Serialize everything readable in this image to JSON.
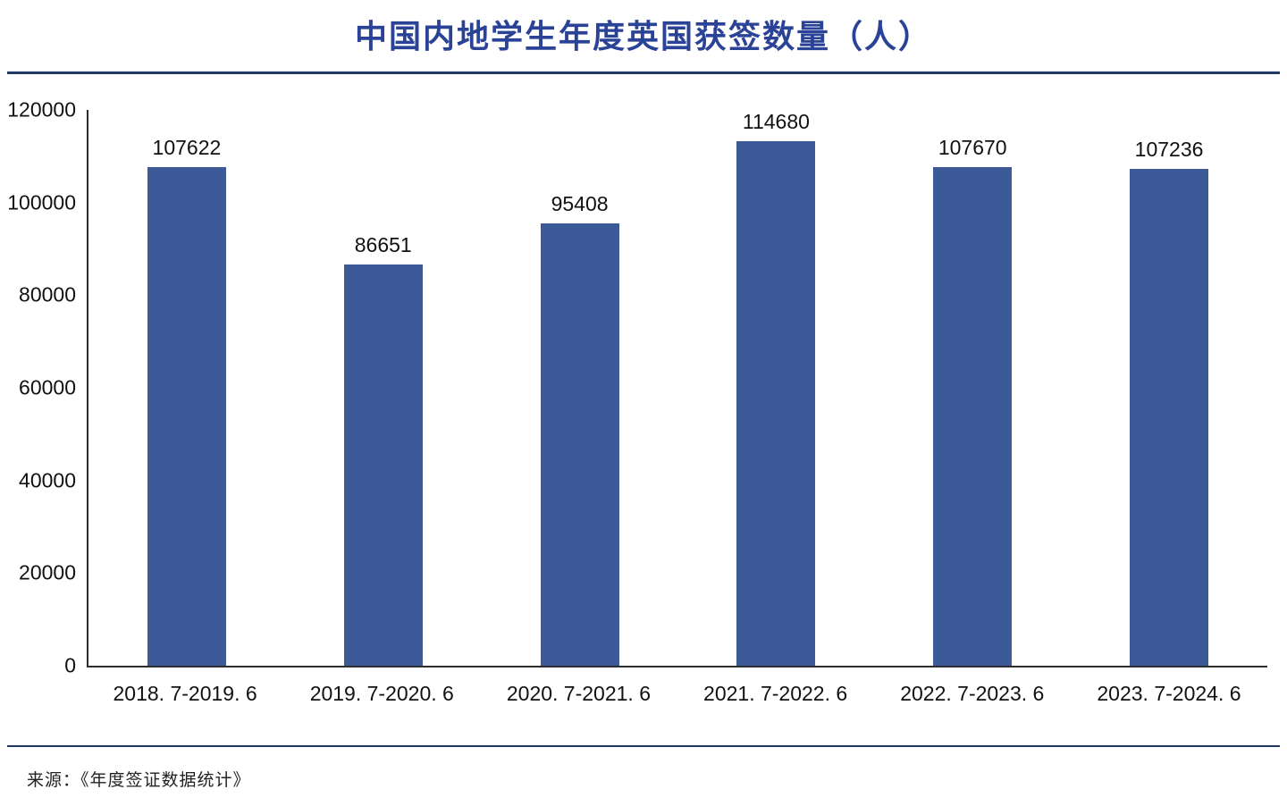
{
  "chart_data": {
    "type": "bar",
    "title": "中国内地学生年度英国获签数量（人）",
    "categories": [
      "2018. 7-2019. 6",
      "2019. 7-2020. 6",
      "2020. 7-2021. 6",
      "2021. 7-2022. 6",
      "2022. 7-2023. 6",
      "2023. 7-2024. 6"
    ],
    "values": [
      107622,
      86651,
      95408,
      114680,
      107670,
      107236
    ],
    "xlabel": "",
    "ylabel": "",
    "ylim": [
      0,
      120000
    ],
    "ytick_step": 20000,
    "grid": false,
    "legend_position": "none",
    "bar_color": "#3d5a98"
  },
  "colors": {
    "title": "#2b4396",
    "divider": "#1f3864",
    "axis": "#2e2e2e",
    "bar": "#3d5a98"
  },
  "footer": {
    "source": "来源：《年度签证数据统计》"
  }
}
